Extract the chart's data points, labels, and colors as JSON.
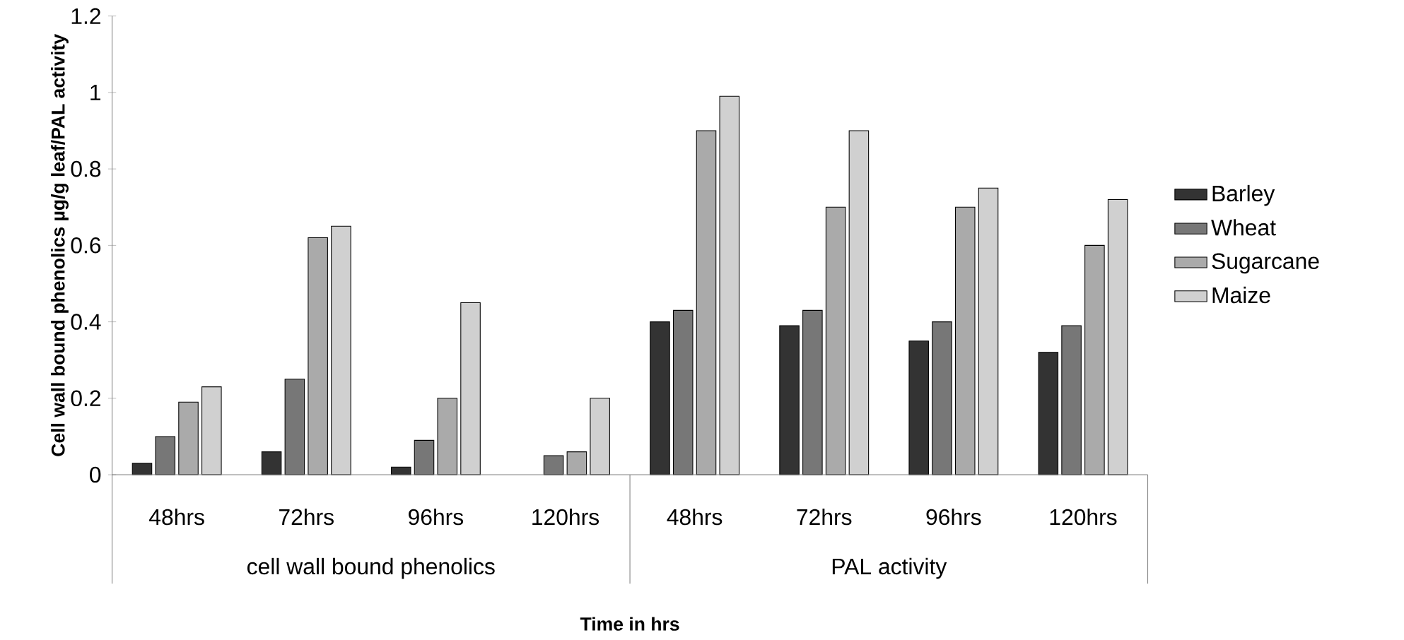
{
  "chart_data": {
    "type": "bar",
    "xlabel": "Time in hrs",
    "ylabel": "Cell wall bound phenolics µg/g leaf/PAL activity",
    "categories": [
      "48hrs",
      "72hrs",
      "96hrs",
      "120hrs",
      "48hrs",
      "72hrs",
      "96hrs",
      "120hrs"
    ],
    "series": [
      {
        "name": "Barley",
        "color": "#333333",
        "values": [
          0.03,
          0.06,
          0.02,
          null,
          0.4,
          0.39,
          0.35,
          0.32
        ]
      },
      {
        "name": "Wheat",
        "color": "#777777",
        "values": [
          0.1,
          0.25,
          0.09,
          0.05,
          0.43,
          0.43,
          0.4,
          0.39
        ]
      },
      {
        "name": "Sugarcane",
        "color": "#aaaaaa",
        "values": [
          0.19,
          0.62,
          0.2,
          0.06,
          0.9,
          0.7,
          0.7,
          0.6
        ]
      },
      {
        "name": "Maize",
        "color": "#d0d0d0",
        "values": [
          0.23,
          0.65,
          0.45,
          0.2,
          0.99,
          0.9,
          0.75,
          0.72
        ]
      }
    ],
    "annotations": [
      "cell wall bound phenolics",
      "PAL activity"
    ],
    "ylim": [
      0,
      1.2
    ],
    "yticks": [
      0,
      0.2,
      0.4,
      0.6,
      0.8,
      1,
      1.2
    ],
    "legend": "right",
    "grid": false
  }
}
